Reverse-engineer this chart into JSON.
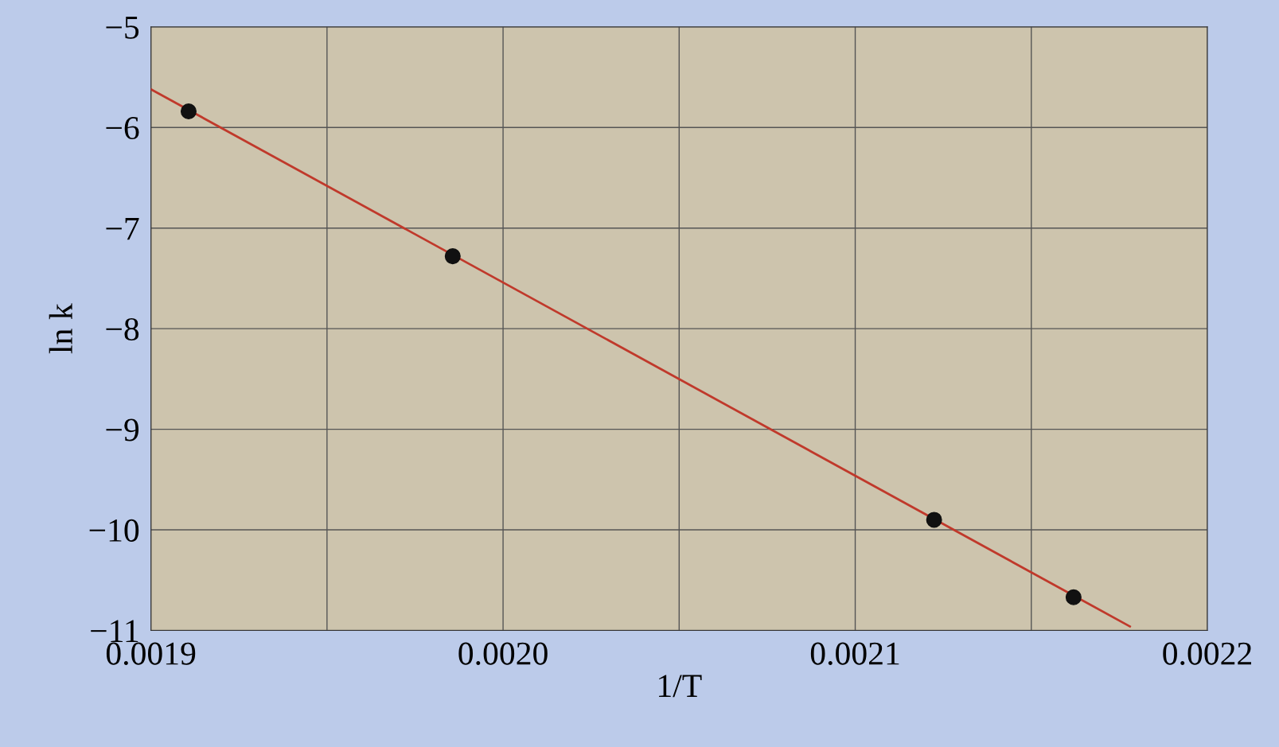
{
  "chart_data": {
    "type": "scatter",
    "xlabel": "1/T",
    "ylabel": "ln k",
    "series": [
      {
        "color": "#111111",
        "x": [
          0.0019107,
          0.0019857,
          0.0021224,
          0.002162
        ],
        "values": [
          -5.84,
          -7.28,
          -9.9,
          -10.67
        ],
        "marker": "circle"
      },
      {
        "type": "line",
        "color": "#c0392b",
        "x": [
          0.0019,
          0.002178
        ],
        "values": [
          -5.62,
          -10.96
        ],
        "marker": "none"
      }
    ],
    "xlim": [
      0.0019,
      0.0022
    ],
    "ylim": [
      -11,
      -5
    ],
    "xticks": [
      {
        "value": 0.0019,
        "label": "0.0019"
      },
      {
        "value": 0.00195,
        "label": null
      },
      {
        "value": 0.002,
        "label": "0.0020"
      },
      {
        "value": 0.00205,
        "label": null
      },
      {
        "value": 0.0021,
        "label": "0.0021"
      },
      {
        "value": 0.00215,
        "label": null
      },
      {
        "value": 0.0022,
        "label": "0.0022"
      }
    ],
    "yticks": [
      {
        "value": -11,
        "label": "−11"
      },
      {
        "value": -10,
        "label": "−10"
      },
      {
        "value": -9,
        "label": "−9"
      },
      {
        "value": -8,
        "label": "−8"
      },
      {
        "value": -7,
        "label": "−7"
      },
      {
        "value": -6,
        "label": "−6"
      },
      {
        "value": -5,
        "label": "−5"
      }
    ],
    "grid": true
  }
}
